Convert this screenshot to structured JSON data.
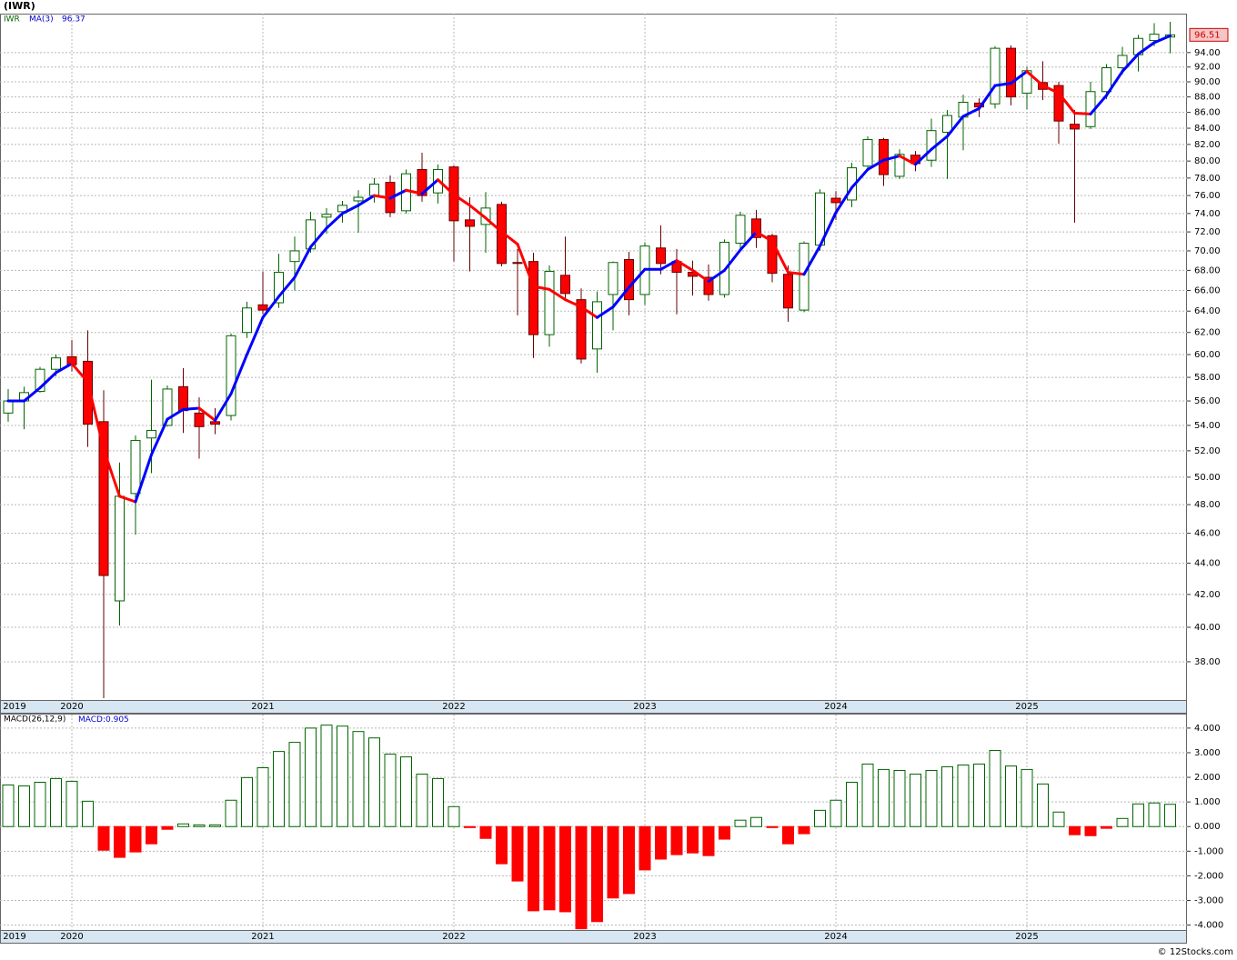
{
  "chart_data": [
    {
      "type": "candlestick",
      "title": "(IWR)",
      "categories": [
        "2019",
        null,
        null,
        null,
        "2020",
        null,
        null,
        null,
        null,
        null,
        null,
        null,
        null,
        null,
        null,
        null,
        "2021",
        null,
        null,
        null,
        null,
        null,
        null,
        null,
        null,
        null,
        null,
        null,
        "2022",
        null,
        null,
        null,
        null,
        null,
        null,
        null,
        null,
        null,
        null,
        null,
        "2023",
        null,
        null,
        null,
        null,
        null,
        null,
        null,
        null,
        null,
        null,
        null,
        "2024",
        null,
        null,
        null,
        null,
        null,
        null,
        null,
        null,
        null,
        null,
        null,
        "2025",
        null,
        null,
        null,
        null,
        null,
        null,
        null,
        null,
        null
      ],
      "series": [
        {
          "name": "IWR",
          "type": "candlestick",
          "color": "#006400",
          "down_color": "#ff0000",
          "open": [
            55.0,
            56.0,
            56.8,
            58.7,
            59.8,
            59.4,
            54.3,
            41.6,
            48.8,
            53.0,
            54.0,
            57.2,
            55.0,
            54.3,
            54.8,
            62.0,
            64.6,
            64.8,
            68.9,
            70.2,
            73.6,
            74.2,
            75.4,
            76.0,
            77.5,
            74.3,
            79.0,
            76.3,
            79.3,
            73.3,
            72.8,
            75.0,
            68.8,
            68.9,
            61.8,
            67.5,
            65.1,
            60.5,
            65.6,
            69.1,
            65.6,
            70.3,
            68.9,
            67.8,
            67.3,
            65.6,
            70.8,
            73.4,
            71.6,
            67.6,
            64.1,
            70.6,
            75.7,
            75.5,
            79.4,
            82.6,
            78.2,
            80.7,
            80.1,
            83.5,
            85.4,
            87.2,
            87.1,
            94.6,
            88.5,
            89.9,
            89.5,
            84.5,
            84.2,
            88.7,
            91.9,
            93.7,
            95.7,
            96.2
          ],
          "high": [
            57.0,
            57.2,
            58.9,
            60.0,
            61.3,
            62.2,
            56.9,
            51.1,
            53.2,
            57.8,
            57.3,
            58.8,
            56.3,
            55.4,
            61.9,
            64.9,
            67.9,
            69.7,
            71.5,
            74.2,
            74.6,
            75.4,
            76.6,
            78.0,
            78.3,
            79.0,
            81.0,
            79.6,
            79.5,
            75.8,
            76.4,
            75.3,
            70.2,
            69.8,
            68.5,
            71.5,
            66.2,
            65.9,
            68.9,
            69.9,
            70.9,
            72.7,
            70.2,
            69.0,
            68.6,
            71.2,
            74.2,
            74.4,
            71.8,
            68.5,
            71.0,
            76.7,
            76.5,
            79.8,
            83.0,
            82.8,
            81.4,
            81.2,
            85.2,
            86.3,
            88.3,
            87.8,
            94.9,
            95.0,
            92.0,
            92.8,
            90.0,
            86.3,
            90.0,
            92.4,
            94.8,
            96.5,
            98.2,
            98.4
          ],
          "low": [
            54.3,
            53.7,
            56.7,
            58.1,
            58.5,
            52.3,
            36.0,
            40.1,
            45.9,
            50.3,
            53.9,
            53.4,
            51.4,
            53.3,
            54.4,
            61.5,
            63.7,
            64.3,
            66.0,
            69.8,
            71.8,
            73.0,
            71.9,
            75.2,
            73.6,
            74.0,
            75.3,
            75.1,
            68.9,
            67.9,
            69.8,
            68.4,
            63.6,
            59.7,
            60.7,
            65.2,
            59.2,
            58.4,
            62.2,
            63.6,
            64.6,
            67.6,
            63.7,
            65.5,
            65.0,
            65.3,
            70.2,
            70.3,
            66.8,
            63.0,
            63.9,
            70.0,
            73.3,
            74.7,
            79.0,
            77.1,
            77.9,
            78.8,
            79.3,
            77.9,
            81.3,
            85.4,
            86.5,
            86.9,
            86.4,
            87.6,
            82.1,
            73.0,
            83.9,
            87.7,
            91.0,
            91.4,
            94.9,
            93.9
          ],
          "close": [
            56.0,
            56.7,
            58.7,
            59.7,
            59.1,
            54.1,
            43.2,
            48.6,
            52.8,
            53.6,
            57.0,
            55.2,
            53.9,
            54.1,
            61.7,
            64.3,
            64.1,
            67.8,
            70.0,
            73.3,
            73.9,
            74.9,
            75.8,
            77.3,
            74.1,
            78.5,
            76.0,
            79.0,
            73.2,
            72.6,
            74.6,
            68.7,
            68.7,
            61.8,
            67.9,
            65.7,
            59.6,
            64.9,
            68.8,
            65.1,
            70.5,
            68.7,
            67.8,
            67.4,
            65.6,
            70.9,
            73.8,
            71.4,
            67.7,
            64.3,
            70.8,
            76.3,
            75.2,
            79.2,
            82.6,
            78.4,
            80.8,
            79.7,
            83.7,
            85.6,
            87.3,
            86.7,
            94.6,
            88.0,
            91.5,
            89.0,
            84.9,
            83.9,
            88.7,
            91.9,
            93.6,
            96.0,
            96.6,
            96.51
          ]
        },
        {
          "name": "MA(3)",
          "type": "line",
          "color": "#0000ff",
          "down_color": "#ff0000",
          "values": [
            56.0,
            56.0,
            57.1,
            58.4,
            59.2,
            57.6,
            52.1,
            48.6,
            48.2,
            51.7,
            54.5,
            55.3,
            55.4,
            54.4,
            56.6,
            60.0,
            63.4,
            65.4,
            67.3,
            70.4,
            72.4,
            74.0,
            74.9,
            76.0,
            75.7,
            76.6,
            76.2,
            77.8,
            76.1,
            74.9,
            73.5,
            72.0,
            70.7,
            66.4,
            66.1,
            65.1,
            64.4,
            63.4,
            64.4,
            66.3,
            68.1,
            68.1,
            69.0,
            68.0,
            66.9,
            68.0,
            70.1,
            72.0,
            71.0,
            67.8,
            67.6,
            70.5,
            74.1,
            76.9,
            79.0,
            80.1,
            80.6,
            79.6,
            81.4,
            83.0,
            85.5,
            86.5,
            89.5,
            89.8,
            91.4,
            89.5,
            88.5,
            85.9,
            85.8,
            88.2,
            91.4,
            93.8,
            95.4,
            96.37
          ]
        }
      ],
      "ylim": [
        35.9,
        99.6
      ],
      "log_scale": true,
      "grid": true,
      "yticks": [
        {
          "value": 38,
          "label": "38.00"
        },
        {
          "value": 40,
          "label": "40.00"
        },
        {
          "value": 42,
          "label": "42.00"
        },
        {
          "value": 44,
          "label": "44.00"
        },
        {
          "value": 46,
          "label": "46.00"
        },
        {
          "value": 48,
          "label": "48.00"
        },
        {
          "value": 50,
          "label": "50.00"
        },
        {
          "value": 52,
          "label": "52.00"
        },
        {
          "value": 54,
          "label": "54.00"
        },
        {
          "value": 56,
          "label": "56.00"
        },
        {
          "value": 58,
          "label": "58.00"
        },
        {
          "value": 60,
          "label": "60.00"
        },
        {
          "value": 62,
          "label": "62.00"
        },
        {
          "value": 64,
          "label": "64.00"
        },
        {
          "value": 66,
          "label": "66.00"
        },
        {
          "value": 68,
          "label": "68.00"
        },
        {
          "value": 70,
          "label": "70.00"
        },
        {
          "value": 72,
          "label": "72.00"
        },
        {
          "value": 74,
          "label": "74.00"
        },
        {
          "value": 76,
          "label": "76.00"
        },
        {
          "value": 78,
          "label": "78.00"
        },
        {
          "value": 80,
          "label": "80.00"
        },
        {
          "value": 82,
          "label": "82.00"
        },
        {
          "value": 84,
          "label": "84.00"
        },
        {
          "value": 86,
          "label": "86.00"
        },
        {
          "value": 88,
          "label": "88.00"
        },
        {
          "value": 90,
          "label": "90.00"
        },
        {
          "value": 92,
          "label": "92.00"
        },
        {
          "value": 94,
          "label": "94.00"
        }
      ]
    },
    {
      "type": "bar",
      "categories": [
        "2019",
        null,
        null,
        null,
        "2020",
        null,
        null,
        null,
        null,
        null,
        null,
        null,
        null,
        null,
        null,
        null,
        "2021",
        null,
        null,
        null,
        null,
        null,
        null,
        null,
        null,
        null,
        null,
        null,
        "2022",
        null,
        null,
        null,
        null,
        null,
        null,
        null,
        null,
        null,
        null,
        null,
        "2023",
        null,
        null,
        null,
        null,
        null,
        null,
        null,
        null,
        null,
        null,
        null,
        "2024",
        null,
        null,
        null,
        null,
        null,
        null,
        null,
        null,
        null,
        null,
        null,
        "2025",
        null,
        null,
        null,
        null,
        null,
        null,
        null,
        null,
        null
      ],
      "series": [
        {
          "name": "MACD(26,12,9)",
          "color": "#006400",
          "down_color": "#ff0000",
          "values": [
            1.69,
            1.65,
            1.8,
            1.95,
            1.84,
            1.03,
            -0.96,
            -1.25,
            -1.03,
            -0.7,
            -0.11,
            0.11,
            0.07,
            0.07,
            1.07,
            1.99,
            2.39,
            3.05,
            3.42,
            4.0,
            4.12,
            4.08,
            3.86,
            3.6,
            2.94,
            2.83,
            2.13,
            1.95,
            0.81,
            -0.04,
            -0.48,
            -1.51,
            -2.21,
            -3.42,
            -3.38,
            -3.46,
            -4.15,
            -3.86,
            -2.9,
            -2.72,
            -1.76,
            -1.32,
            -1.14,
            -1.07,
            -1.18,
            -0.51,
            0.26,
            0.37,
            -0.04,
            -0.7,
            -0.29,
            0.66,
            1.07,
            1.8,
            2.54,
            2.32,
            2.28,
            2.13,
            2.28,
            2.43,
            2.5,
            2.54,
            3.09,
            2.46,
            2.32,
            1.73,
            0.59,
            -0.33,
            -0.37,
            -0.07,
            0.33,
            0.92,
            0.96,
            0.905
          ]
        }
      ],
      "readout_label": "MACD:",
      "ylim": [
        -4.2,
        4.55
      ],
      "grid": true,
      "yticks": [
        {
          "value": -4,
          "label": "-4.000"
        },
        {
          "value": -3,
          "label": "-3.000"
        },
        {
          "value": -2,
          "label": "-2.000"
        },
        {
          "value": -1,
          "label": "-1.000"
        },
        {
          "value": 0,
          "label": "0.000"
        },
        {
          "value": 1,
          "label": "1.000"
        },
        {
          "value": 2,
          "label": "2.000"
        },
        {
          "value": 3,
          "label": "3.000"
        },
        {
          "value": 4,
          "label": "4.000"
        }
      ]
    }
  ],
  "footer": "© 12Stocks.com"
}
